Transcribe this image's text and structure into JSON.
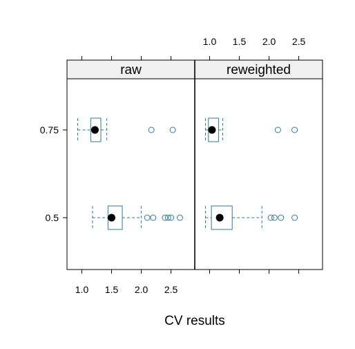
{
  "chart_data": {
    "type": "boxplot",
    "xlabel": "CV results",
    "x_ticks": [
      "1.0",
      "1.5",
      "2.0",
      "2.5"
    ],
    "xlim": [
      0.75,
      2.9
    ],
    "y_categories": [
      "0.5",
      "0.75"
    ],
    "colors": {
      "box": "#2C7A9A",
      "median": "#000000",
      "strip_bg": "#F0F0F0",
      "frame": "#000000"
    },
    "panels": [
      {
        "name": "raw",
        "groups": [
          {
            "category": "0.75",
            "whisker_low": 0.93,
            "q1": 1.15,
            "median": 1.22,
            "q3": 1.32,
            "whisker_high": 1.42,
            "outliers": [
              2.17,
              2.53
            ]
          },
          {
            "category": "0.5",
            "whisker_low": 1.18,
            "q1": 1.44,
            "median": 1.5,
            "q3": 1.68,
            "whisker_high": 2.0,
            "outliers": [
              2.1,
              2.2,
              2.4,
              2.45,
              2.5,
              2.65
            ]
          }
        ]
      },
      {
        "name": "reweighted",
        "groups": [
          {
            "category": "0.75",
            "whisker_low": 0.93,
            "q1": 0.98,
            "median": 1.04,
            "q3": 1.15,
            "whisker_high": 1.22,
            "outliers": [
              2.15,
              2.43
            ]
          },
          {
            "category": "0.5",
            "whisker_low": 0.93,
            "q1": 1.03,
            "median": 1.17,
            "q3": 1.38,
            "whisker_high": 1.88,
            "outliers": [
              2.03,
              2.09,
              2.2,
              2.43
            ]
          }
        ]
      }
    ]
  }
}
